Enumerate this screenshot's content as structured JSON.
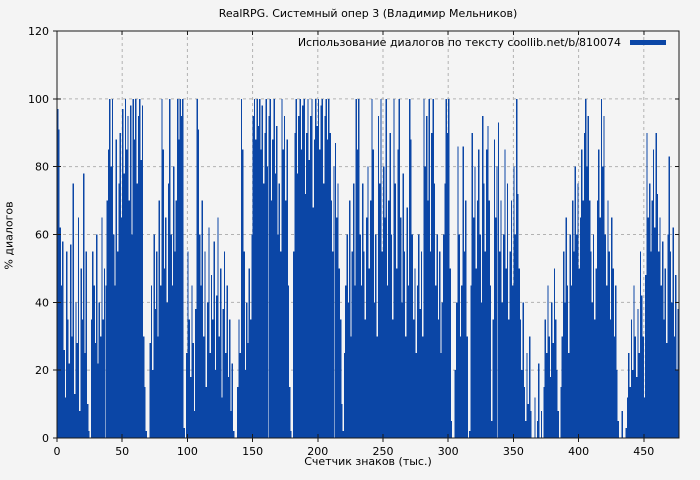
{
  "chart_data": {
    "type": "bar",
    "title": "RealRPG. Системный опер 3 (Владимир Мельников)",
    "legend_label": "Использование диалогов по тексту coollib.net/b/810074",
    "xlabel": "Счетчик знаков (тыс.)",
    "ylabel": "% диалогов",
    "xlim": [
      0,
      477
    ],
    "ylim": [
      0,
      120
    ],
    "xticks": [
      0,
      50,
      100,
      150,
      200,
      250,
      300,
      350,
      400,
      450
    ],
    "yticks": [
      0,
      20,
      40,
      60,
      80,
      100,
      120
    ],
    "grid": true,
    "legend_position": "top-right-inside",
    "bar_color": "#0b46a6",
    "background_color": "#f4f4f4",
    "values": [
      97,
      91,
      62,
      45,
      58,
      26,
      12,
      55,
      35,
      22,
      57,
      30,
      75,
      13,
      40,
      28,
      65,
      8,
      50,
      35,
      78,
      25,
      55,
      10,
      2,
      0,
      35,
      55,
      45,
      28,
      60,
      22,
      40,
      30,
      65,
      35,
      50,
      45,
      70,
      85,
      100,
      80,
      100,
      60,
      45,
      88,
      55,
      75,
      90,
      65,
      97,
      78,
      100,
      85,
      95,
      70,
      98,
      60,
      100,
      88,
      100,
      75,
      95,
      100,
      82,
      98,
      30,
      15,
      2,
      0,
      0,
      28,
      45,
      20,
      60,
      38,
      55,
      30,
      70,
      45,
      100,
      85,
      50,
      65,
      40,
      75,
      100,
      60,
      45,
      80,
      55,
      70,
      100,
      88,
      100,
      95,
      100,
      3,
      0,
      25,
      55,
      35,
      18,
      45,
      28,
      8,
      38,
      100,
      91,
      60,
      45,
      70,
      30,
      55,
      15,
      40,
      62,
      25,
      48,
      35,
      58,
      20,
      42,
      65,
      30,
      50,
      12,
      38,
      55,
      25,
      45,
      18,
      35,
      8,
      22,
      2,
      0,
      0,
      15,
      35,
      25,
      100,
      85,
      55,
      20,
      40,
      28,
      50,
      35,
      60,
      95,
      100,
      88,
      100,
      92,
      100,
      85,
      98,
      75,
      90,
      100,
      80,
      95,
      100,
      70,
      88,
      100,
      78,
      92,
      60,
      75,
      55,
      100,
      85,
      95,
      70,
      88,
      45,
      15,
      2,
      0,
      55,
      90,
      100,
      78,
      95,
      100,
      85,
      98,
      100,
      72,
      90,
      100,
      82,
      95,
      100,
      68,
      88,
      100,
      92,
      100,
      85,
      98,
      100,
      75,
      95,
      100,
      88,
      100,
      90,
      70,
      55,
      80,
      87,
      65,
      75,
      50,
      35,
      10,
      2,
      25,
      45,
      60,
      40,
      70,
      30,
      55,
      75,
      45,
      100,
      85,
      100,
      60,
      45,
      75,
      55,
      35,
      65,
      80,
      50,
      70,
      100,
      85,
      40,
      60,
      30,
      95,
      75,
      100,
      55,
      80,
      65,
      100,
      45,
      70,
      90,
      60,
      35,
      100,
      75,
      50,
      85,
      100,
      65,
      40,
      78,
      55,
      30,
      68,
      45,
      100,
      88,
      60,
      35,
      50,
      25,
      45,
      60,
      38,
      55,
      30,
      100,
      80,
      95,
      70,
      100,
      55,
      90,
      100,
      75,
      45,
      60,
      35,
      55,
      25,
      40,
      60,
      75,
      100,
      90,
      100,
      50,
      5,
      0,
      0,
      20,
      40,
      86,
      60,
      30,
      45,
      86,
      55,
      70,
      30,
      0,
      2,
      45,
      90,
      65,
      80,
      50,
      70,
      85,
      60,
      40,
      95,
      75,
      55,
      85,
      92,
      70,
      45,
      5,
      35,
      88,
      65,
      80,
      93,
      55,
      70,
      40,
      60,
      85,
      50,
      75,
      35,
      55,
      70,
      45,
      80,
      60,
      100,
      72,
      50,
      35,
      20,
      40,
      15,
      5,
      25,
      10,
      30,
      8,
      0,
      0,
      12,
      0,
      5,
      22,
      0,
      8,
      0,
      15,
      35,
      25,
      45,
      30,
      18,
      40,
      28,
      50,
      35,
      20,
      8,
      0,
      15,
      30,
      55,
      40,
      65,
      45,
      25,
      60,
      45,
      70,
      55,
      80,
      60,
      75,
      50,
      65,
      85,
      70,
      90,
      100,
      80,
      95,
      70,
      55,
      40,
      60,
      35,
      50,
      70,
      85,
      65,
      100,
      80,
      95,
      60,
      45,
      70,
      55,
      35,
      65,
      50,
      30,
      45,
      20,
      5,
      0,
      0,
      8,
      0,
      0,
      3,
      12,
      25,
      15,
      35,
      20,
      45,
      30,
      18,
      38,
      25,
      55,
      42,
      30,
      12,
      48,
      90,
      65,
      75,
      55,
      70,
      85,
      62,
      90,
      72,
      55,
      65,
      45,
      58,
      35,
      50,
      28,
      60,
      83,
      55,
      40,
      62,
      30,
      48,
      20,
      38
    ]
  }
}
